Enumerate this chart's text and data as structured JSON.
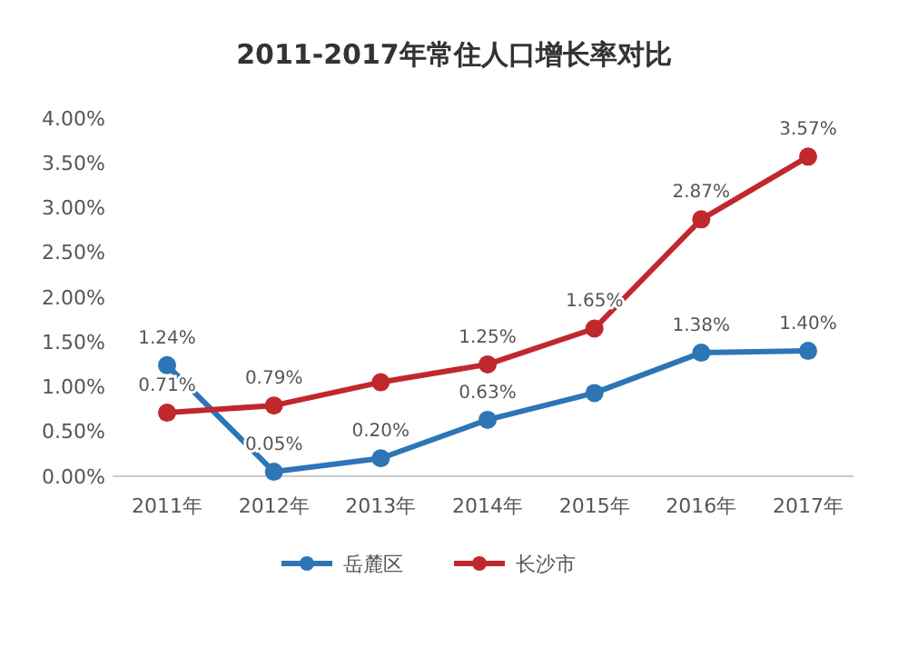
{
  "chart_data": {
    "type": "line",
    "title": "2011-2017年常住人口增长率对比",
    "categories": [
      "2011年",
      "2012年",
      "2013年",
      "2014年",
      "2015年",
      "2016年",
      "2017年"
    ],
    "series": [
      {
        "name": "岳麓区",
        "color": "#2e75b6",
        "values": [
          1.24,
          0.05,
          0.2,
          0.63,
          0.93,
          1.38,
          1.4
        ],
        "value_labels": [
          "1.24%",
          "0.05%",
          "0.20%",
          "0.63%",
          null,
          "1.38%",
          "1.40%"
        ]
      },
      {
        "name": "长沙市",
        "color": "#c0282d",
        "values": [
          0.71,
          0.79,
          1.05,
          1.25,
          1.65,
          2.87,
          3.57
        ],
        "value_labels": [
          "0.71%",
          "0.79%",
          null,
          "1.25%",
          "1.65%",
          "2.87%",
          "3.57%"
        ]
      }
    ],
    "ylim": [
      0,
      4
    ],
    "yticks": [
      {
        "value": 0,
        "label": "0.00%"
      },
      {
        "value": 0.5,
        "label": "0.50%"
      },
      {
        "value": 1,
        "label": "1.00%"
      },
      {
        "value": 1.5,
        "label": "1.50%"
      },
      {
        "value": 2,
        "label": "2.00%"
      },
      {
        "value": 2.5,
        "label": "2.50%"
      },
      {
        "value": 3,
        "label": "3.00%"
      },
      {
        "value": 3.5,
        "label": "3.50%"
      },
      {
        "value": 4,
        "label": "4.00%"
      }
    ],
    "grid": false,
    "legend": "bottom",
    "marker": "circle",
    "line_style": "solid"
  }
}
